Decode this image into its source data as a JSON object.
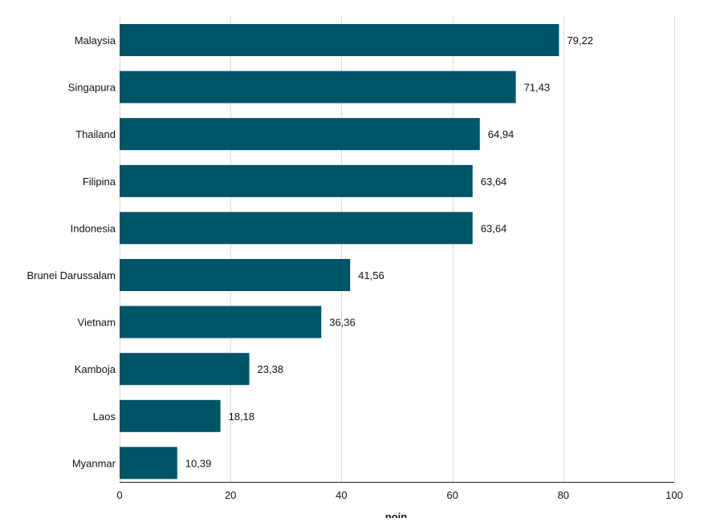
{
  "chart_data": {
    "type": "bar",
    "orientation": "horizontal",
    "categories": [
      "Malaysia",
      "Singapura",
      "Thailand",
      "Filipina",
      "Indonesia",
      "Brunei Darussalam",
      "Vietnam",
      "Kamboja",
      "Laos",
      "Myanmar"
    ],
    "values": [
      79.22,
      71.43,
      64.94,
      63.64,
      63.64,
      41.56,
      36.36,
      23.38,
      18.18,
      10.39
    ],
    "value_labels": [
      "79,22",
      "71,43",
      "64,94",
      "63,64",
      "63,64",
      "41,56",
      "36,36",
      "23,38",
      "18,18",
      "10,39"
    ],
    "xlabel": "poin",
    "ylabel": "",
    "xlim": [
      0,
      100
    ],
    "xticks": [
      0,
      20,
      40,
      60,
      80,
      100
    ],
    "xtick_labels": [
      "0",
      "20",
      "40",
      "60",
      "80",
      "100"
    ],
    "grid": "vertical",
    "legend": "none",
    "bar_color": "#005468"
  }
}
